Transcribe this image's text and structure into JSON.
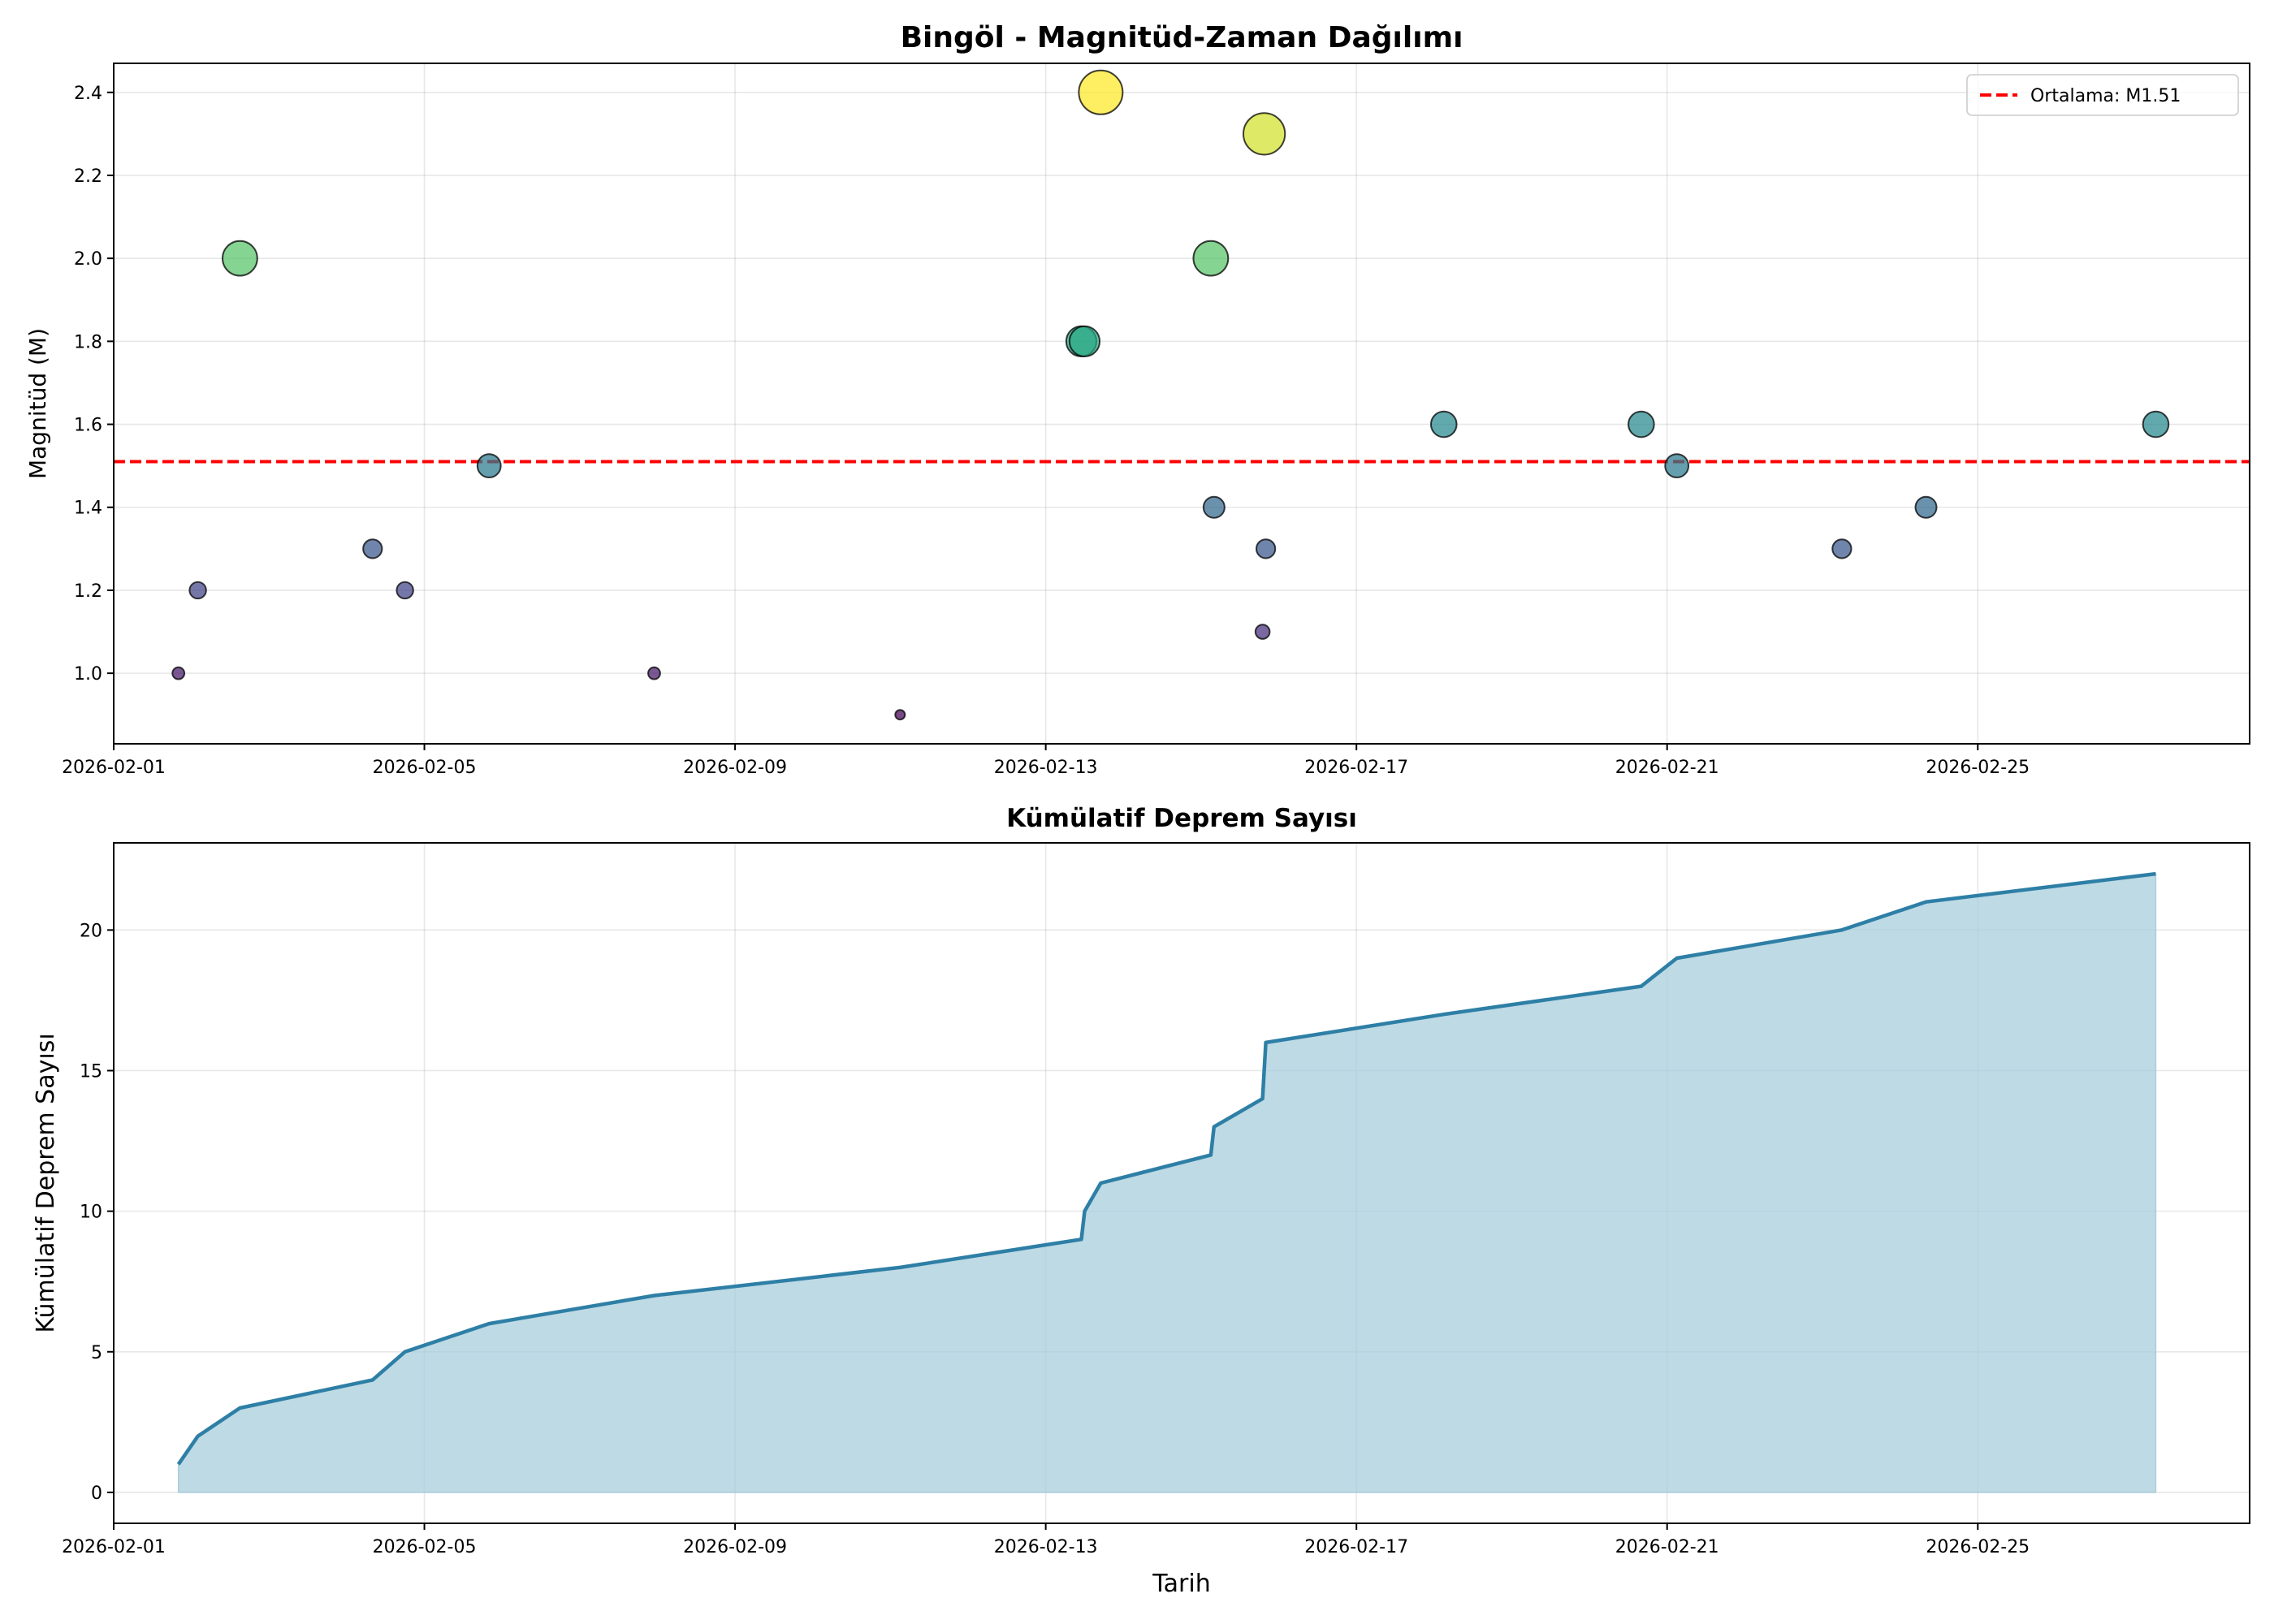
{
  "chart_data": [
    {
      "type": "scatter",
      "title": "Bingöl - Magnitüd-Zaman Dağılımı",
      "xlabel": "",
      "ylabel": "Magnitüd (M)",
      "xlim": [
        "2026-02-01T00:00",
        "2026-02-28T12:00"
      ],
      "ylim": [
        0.83,
        2.47
      ],
      "grid": true,
      "x_ticks": [
        "2026-02-01",
        "2026-02-05",
        "2026-02-09",
        "2026-02-13",
        "2026-02-17",
        "2026-02-21",
        "2026-02-25"
      ],
      "y_ticks": [
        "1.0",
        "1.2",
        "1.4",
        "1.6",
        "1.8",
        "2.0",
        "2.2",
        "2.4"
      ],
      "colormap": "viridis",
      "points": [
        {
          "x": "2026-02-01T20:00",
          "y": 1.0
        },
        {
          "x": "2026-02-02T02:00",
          "y": 1.2
        },
        {
          "x": "2026-02-02T15:00",
          "y": 2.0
        },
        {
          "x": "2026-02-04T08:00",
          "y": 1.3
        },
        {
          "x": "2026-02-04T18:00",
          "y": 1.2
        },
        {
          "x": "2026-02-05T20:00",
          "y": 1.5
        },
        {
          "x": "2026-02-07T23:00",
          "y": 1.0
        },
        {
          "x": "2026-02-11T03:00",
          "y": 0.9
        },
        {
          "x": "2026-02-13T11:00",
          "y": 1.8
        },
        {
          "x": "2026-02-13T12:00",
          "y": 1.8
        },
        {
          "x": "2026-02-13T17:00",
          "y": 2.4
        },
        {
          "x": "2026-02-15T03:00",
          "y": 2.0
        },
        {
          "x": "2026-02-15T04:00",
          "y": 1.4
        },
        {
          "x": "2026-02-15T19:00",
          "y": 1.1
        },
        {
          "x": "2026-02-15T19:30",
          "y": 2.3
        },
        {
          "x": "2026-02-15T20:00",
          "y": 1.3
        },
        {
          "x": "2026-02-18T03:00",
          "y": 1.6
        },
        {
          "x": "2026-02-20T16:00",
          "y": 1.6
        },
        {
          "x": "2026-02-21T03:00",
          "y": 1.5
        },
        {
          "x": "2026-02-23T06:00",
          "y": 1.3
        },
        {
          "x": "2026-02-24T08:00",
          "y": 1.4
        },
        {
          "x": "2026-02-27T07:00",
          "y": 1.6
        }
      ],
      "mean_line": {
        "value": 1.51,
        "color": "#ff0000",
        "label": "Ortalama: M1.51"
      },
      "legend_position": "upper-right"
    },
    {
      "type": "area",
      "title": "Kümülatif Deprem Sayısı",
      "xlabel": "Tarih",
      "ylabel": "Kümülatif Deprem Sayısı",
      "xlim": [
        "2026-02-01T00:00",
        "2026-02-28T12:00"
      ],
      "ylim": [
        -1.1,
        23.1
      ],
      "grid": true,
      "x_ticks": [
        "2026-02-01",
        "2026-02-05",
        "2026-02-09",
        "2026-02-13",
        "2026-02-17",
        "2026-02-21",
        "2026-02-25"
      ],
      "y_ticks": [
        "0",
        "5",
        "10",
        "15",
        "20"
      ],
      "line_color": "#2e7fa6",
      "fill_color": "#a8cddc",
      "x": [
        "2026-02-01T20:00",
        "2026-02-02T02:00",
        "2026-02-02T15:00",
        "2026-02-04T08:00",
        "2026-02-04T18:00",
        "2026-02-05T20:00",
        "2026-02-07T23:00",
        "2026-02-11T03:00",
        "2026-02-13T11:00",
        "2026-02-13T12:00",
        "2026-02-13T17:00",
        "2026-02-15T03:00",
        "2026-02-15T04:00",
        "2026-02-15T19:00",
        "2026-02-15T19:30",
        "2026-02-15T20:00",
        "2026-02-18T03:00",
        "2026-02-20T16:00",
        "2026-02-21T03:00",
        "2026-02-23T06:00",
        "2026-02-24T08:00",
        "2026-02-27T07:00"
      ],
      "values": [
        1,
        2,
        3,
        4,
        5,
        6,
        7,
        8,
        9,
        10,
        11,
        12,
        13,
        14,
        15,
        16,
        17,
        18,
        19,
        20,
        21,
        22
      ]
    }
  ]
}
